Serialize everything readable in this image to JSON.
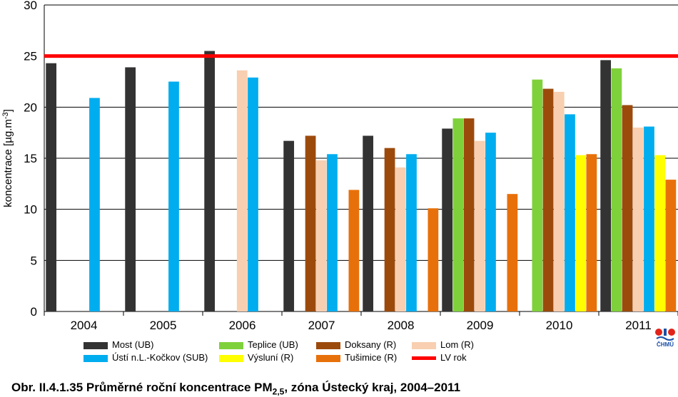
{
  "chart_data": {
    "type": "bar",
    "ylabel": "koncentrace [µg.m",
    "ylabel_sup": "-3",
    "ylabel_end": "]",
    "ylim": [
      0,
      30
    ],
    "yticks": [
      0,
      5,
      10,
      15,
      20,
      25,
      30
    ],
    "categories": [
      "2004",
      "2005",
      "2006",
      "2007",
      "2008",
      "2009",
      "2010",
      "2011"
    ],
    "grid": true,
    "legend_position": "bottom",
    "series": [
      {
        "name": "Most (UB)",
        "color": "#333333",
        "values": [
          24.3,
          23.9,
          25.5,
          16.7,
          17.2,
          17.9,
          null,
          24.6
        ]
      },
      {
        "name": "Teplice (UB)",
        "color": "#7fd13b",
        "values": [
          null,
          null,
          null,
          null,
          null,
          18.9,
          22.7,
          23.8
        ]
      },
      {
        "name": "Doksany (R)",
        "color": "#9c4a0c",
        "values": [
          null,
          null,
          null,
          17.2,
          16.0,
          18.9,
          21.8,
          20.2
        ]
      },
      {
        "name": "Lom (R)",
        "color": "#f8cfb0",
        "values": [
          null,
          null,
          23.6,
          14.8,
          14.1,
          16.7,
          21.5,
          18.0
        ]
      },
      {
        "name": "Ústí n.L.-Kočkov (SUB)",
        "color": "#00adef",
        "values": [
          20.9,
          22.5,
          22.9,
          15.4,
          15.4,
          17.5,
          19.3,
          18.1
        ]
      },
      {
        "name": "Výsluní (R)",
        "color": "#ffff00",
        "values": [
          null,
          null,
          null,
          null,
          null,
          null,
          15.3,
          15.3
        ]
      },
      {
        "name": "Tušimice (R)",
        "color": "#e8700a",
        "values": [
          null,
          null,
          null,
          11.9,
          10.1,
          11.5,
          15.4,
          12.9
        ]
      }
    ],
    "limit_line": {
      "name": "LV rok",
      "value": 25,
      "color": "#ff0000"
    }
  },
  "legend": {
    "most": "Most (UB)",
    "usti": "Ústí n.L.-Kočkov (SUB)",
    "teplice": "Teplice (UB)",
    "vysluni": "Výsluní (R)",
    "doksany": "Doksany (R)",
    "tusimice": "Tušimice (R)",
    "lom": "Lom (R)",
    "lv": "LV rok"
  },
  "caption": {
    "prefix": "Obr. II.4.1.35  Průměrné roční koncentrace PM",
    "subscript": "2,5",
    "suffix": ", zóna Ústecký kraj, 2004–2011"
  },
  "logo": {
    "text": "ČHMÚ"
  }
}
